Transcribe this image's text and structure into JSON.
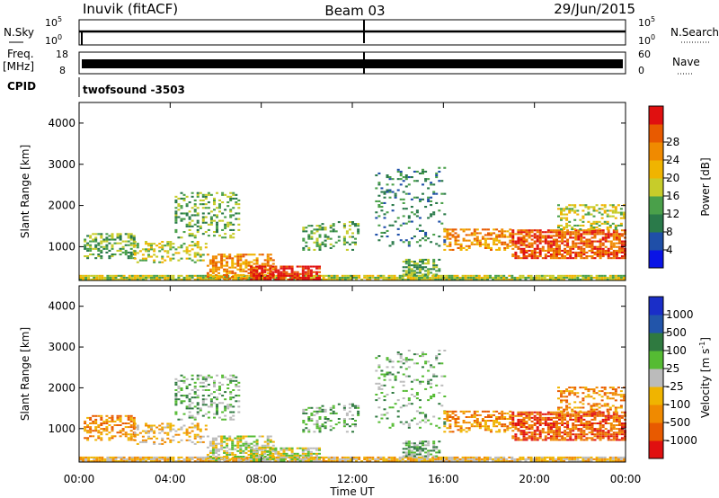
{
  "header": {
    "station": "Inuvik (fitACF)",
    "beam": "Beam 03",
    "date": "29/Jun/2015"
  },
  "strips": {
    "nsky": {
      "label": "N.Sky",
      "ticks": [
        "10^5",
        "10^0"
      ]
    },
    "nsearch": {
      "label": "N.Search",
      "ticks": [
        "10^5",
        "10^0"
      ]
    },
    "freq": {
      "label": "Freq.",
      "unit": "[MHz]",
      "ticks": [
        "18",
        "8"
      ]
    },
    "nave": {
      "label": "Nave",
      "ticks": [
        "60",
        "0"
      ]
    },
    "cpid": {
      "label": "CPID",
      "value": "twofsound -3503"
    }
  },
  "colors": {
    "power": [
      "#0a14e6",
      "#1f4fa8",
      "#2a7a4a",
      "#4aa04a",
      "#c7cc2a",
      "#f0b400",
      "#f08a00",
      "#e85a00",
      "#e01010"
    ],
    "velocity": [
      "#1a2ec8",
      "#2255aa",
      "#2f7a40",
      "#55bb33",
      "#bbbbbb",
      "#f0b400",
      "#f08a00",
      "#e85a00",
      "#e01010"
    ]
  },
  "chart_data": [
    {
      "type": "heatmap",
      "quantity": "power",
      "xlabel": "",
      "ylabel": "Slant Range [km]",
      "x_ticks": [
        "00:00",
        "04:00",
        "08:00",
        "12:00",
        "16:00",
        "20:00",
        "00:00"
      ],
      "xlim_hours": [
        0,
        24
      ],
      "y_ticks": [
        1000,
        2000,
        3000,
        4000
      ],
      "ylim": [
        180,
        4500
      ],
      "colorbar": {
        "label": "Power [dB]",
        "ticks": [
          "4",
          "8",
          "12",
          "16",
          "20",
          "24",
          "28"
        ]
      }
    },
    {
      "type": "heatmap",
      "quantity": "velocity",
      "xlabel": "Time UT",
      "ylabel": "Slant Range [km]",
      "x_ticks": [
        "00:00",
        "04:00",
        "08:00",
        "12:00",
        "16:00",
        "20:00",
        "00:00"
      ],
      "xlim_hours": [
        0,
        24
      ],
      "y_ticks": [
        1000,
        2000,
        3000,
        4000
      ],
      "ylim": [
        180,
        4500
      ],
      "colorbar": {
        "label": "Velocity [m s^-1]",
        "ticks": [
          "1000",
          "500",
          "100",
          "25",
          "-25",
          "-100",
          "-500",
          "-1000"
        ]
      }
    }
  ]
}
